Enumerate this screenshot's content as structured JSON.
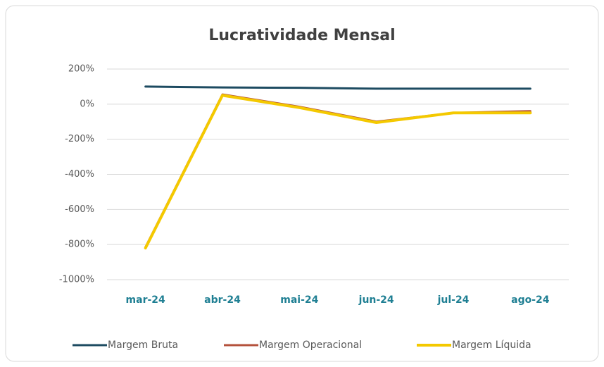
{
  "chart_data": {
    "type": "line",
    "title": "Lucratividade Mensal",
    "categories": [
      "mar-24",
      "abr-24",
      "mai-24",
      "jun-24",
      "jul-24",
      "ago-24"
    ],
    "series": [
      {
        "name": "Margem Bruta",
        "color": "#1d4b61",
        "values": [
          100,
          95,
          93,
          88,
          88,
          88
        ]
      },
      {
        "name": "Margem Operacional",
        "color": "#b4523c",
        "values": [
          -815,
          55,
          -15,
          -100,
          -50,
          -40
        ]
      },
      {
        "name": "Margem Líquida",
        "color": "#f4c900",
        "values": [
          -820,
          50,
          -20,
          -105,
          -50,
          -50
        ]
      }
    ],
    "ylim": [
      -1000,
      200
    ],
    "yticks": [
      {
        "value": -1000,
        "label": "-1000%"
      },
      {
        "value": -800,
        "label": "-800%"
      },
      {
        "value": -600,
        "label": "-600%"
      },
      {
        "value": -400,
        "label": "-400%"
      },
      {
        "value": -200,
        "label": "-200%"
      },
      {
        "value": 0,
        "label": "0%"
      },
      {
        "value": 200,
        "label": "200%"
      }
    ],
    "grid": true,
    "legend": "bottom"
  }
}
